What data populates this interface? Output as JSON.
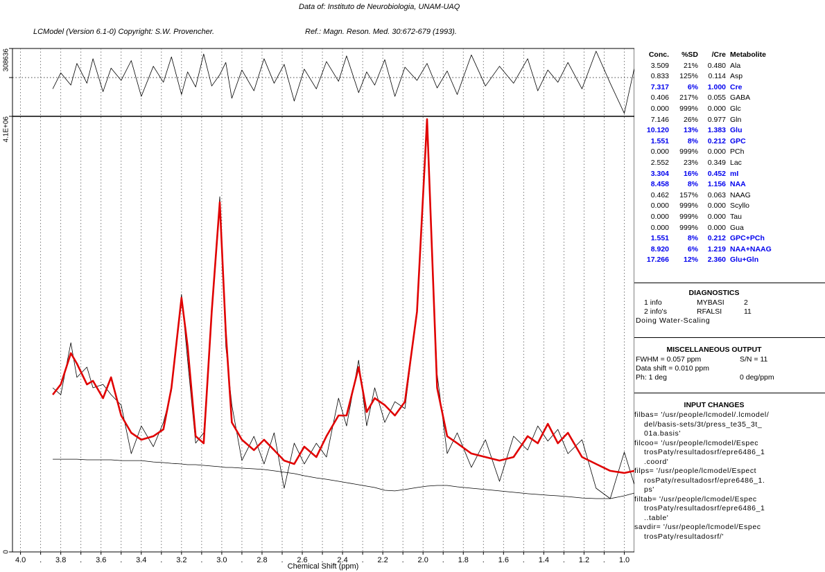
{
  "header": {
    "source": "Data of: Instituto de Neurobiologia, UNAM-UAQ",
    "program": "LCModel (Version 6.1-0) Copyright: S.W. Provencher.",
    "reference": "Ref.: Magn. Reson. Med. 30:672-679 (1993)."
  },
  "chart_data": {
    "type": "line",
    "x_label": "Chemical Shift (ppm)",
    "xlim": [
      4.04,
      0.95
    ],
    "xticks": [
      {
        "value": 4.0,
        "label": "4.0"
      },
      {
        "value": 3.9,
        "label": "."
      },
      {
        "value": 3.8,
        "label": "3.8"
      },
      {
        "value": 3.7,
        "label": "."
      },
      {
        "value": 3.6,
        "label": "3.6"
      },
      {
        "value": 3.5,
        "label": "."
      },
      {
        "value": 3.4,
        "label": "3.4"
      },
      {
        "value": 3.3,
        "label": "."
      },
      {
        "value": 3.2,
        "label": "3.2"
      },
      {
        "value": 3.1,
        "label": "."
      },
      {
        "value": 3.0,
        "label": "3.0"
      },
      {
        "value": 2.9,
        "label": "."
      },
      {
        "value": 2.8,
        "label": "2.8"
      },
      {
        "value": 2.7,
        "label": "."
      },
      {
        "value": 2.6,
        "label": "2.6"
      },
      {
        "value": 2.5,
        "label": "."
      },
      {
        "value": 2.4,
        "label": "2.4"
      },
      {
        "value": 2.3,
        "label": "."
      },
      {
        "value": 2.2,
        "label": "2.2"
      },
      {
        "value": 2.1,
        "label": "."
      },
      {
        "value": 2.0,
        "label": "2.0"
      },
      {
        "value": 1.9,
        "label": "."
      },
      {
        "value": 1.8,
        "label": "1.8"
      },
      {
        "value": 1.7,
        "label": "."
      },
      {
        "value": 1.6,
        "label": "1.6"
      },
      {
        "value": 1.5,
        "label": "."
      },
      {
        "value": 1.4,
        "label": "1.4"
      },
      {
        "value": 1.3,
        "label": "."
      },
      {
        "value": 1.2,
        "label": "1.2"
      },
      {
        "value": 1.1,
        "label": "."
      },
      {
        "value": 1.0,
        "label": "1.0"
      }
    ],
    "ylim": [
      0,
      4100000
    ],
    "yticks": [
      0,
      {
        "value": 4100000,
        "label": "4.1E+06"
      }
    ],
    "y2lim": [
      -411500,
      308636
    ],
    "y2ticks": [
      308636
    ],
    "grid": true,
    "x": [
      3.84,
      3.8,
      3.75,
      3.72,
      3.67,
      3.64,
      3.59,
      3.55,
      3.5,
      3.45,
      3.4,
      3.34,
      3.29,
      3.25,
      3.2,
      3.17,
      3.13,
      3.09,
      3.05,
      3.01,
      2.98,
      2.95,
      2.9,
      2.84,
      2.79,
      2.74,
      2.69,
      2.64,
      2.59,
      2.53,
      2.48,
      2.42,
      2.38,
      2.32,
      2.28,
      2.24,
      2.19,
      2.14,
      2.09,
      2.03,
      1.98,
      1.93,
      1.88,
      1.83,
      1.76,
      1.69,
      1.62,
      1.55,
      1.48,
      1.43,
      1.38,
      1.33,
      1.28,
      1.21,
      1.14,
      1.07,
      1.0,
      0.95
    ],
    "series": [
      {
        "color": "#000000",
        "line_width": 0.8,
        "values": [
          1545000,
          1479000,
          1969000,
          1643000,
          1740000,
          1545000,
          1577000,
          1480000,
          1382000,
          925000,
          1186000,
          991000,
          1219000,
          1512000,
          2425000,
          1806000,
          1024000,
          1121000,
          2229000,
          3344000,
          1936000,
          1382000,
          860000,
          1088000,
          828000,
          1121000,
          599000,
          1024000,
          828000,
          1023000,
          893000,
          1447000,
          1186000,
          1805000,
          1187000,
          1545000,
          1219000,
          1414000,
          1349000,
          2262000,
          3976000,
          1675000,
          926000,
          1121000,
          796000,
          1056000,
          664000,
          1089000,
          959000,
          1186000,
          1043000,
          1153000,
          925000,
          1056000,
          600000,
          502000,
          939000,
          633000
        ]
      },
      {
        "color": "#e00000",
        "line_width": 2.6,
        "values": [
          1480000,
          1577000,
          1871000,
          1773000,
          1577000,
          1610000,
          1447000,
          1643000,
          1284000,
          1121000,
          1056000,
          1089000,
          1154000,
          1545000,
          2392000,
          1936000,
          1089000,
          1023000,
          2262000,
          3292000,
          2066000,
          1219000,
          1056000,
          958000,
          1056000,
          958000,
          860000,
          828000,
          991000,
          893000,
          1089000,
          1284000,
          1284000,
          1740000,
          1317000,
          1447000,
          1382000,
          1284000,
          1414000,
          2262000,
          4074000,
          1545000,
          1089000,
          1023000,
          926000,
          893000,
          860000,
          893000,
          1089000,
          1023000,
          1206000,
          1023000,
          1121000,
          893000,
          828000,
          763000,
          743000,
          763000
        ]
      },
      {
        "color": "#000000",
        "line_width": 0.8,
        "values": [
          873000,
          873000,
          873000,
          873000,
          867000,
          867000,
          867000,
          867000,
          860000,
          860000,
          860000,
          847000,
          841000,
          834000,
          828000,
          821000,
          821000,
          815000,
          808000,
          802000,
          795000,
          795000,
          789000,
          782000,
          776000,
          763000,
          750000,
          737000,
          717000,
          697000,
          684000,
          665000,
          652000,
          632000,
          619000,
          606000,
          580000,
          574000,
          587000,
          606000,
          619000,
          626000,
          626000,
          613000,
          600000,
          587000,
          574000,
          561000,
          548000,
          541000,
          534000,
          528000,
          521000,
          508000,
          502000,
          502000,
          528000,
          554000
        ]
      },
      {
        "color": "#000000",
        "line_width": 0.8,
        "axis": "y2",
        "values": [
          -120000,
          50000,
          -80000,
          150000,
          -60000,
          200000,
          -150000,
          100000,
          -30000,
          180000,
          -200000,
          120000,
          -50000,
          220000,
          -180000,
          60000,
          -100000,
          250000,
          -90000,
          30000,
          160000,
          -220000,
          80000,
          -140000,
          200000,
          -60000,
          140000,
          -250000,
          90000,
          -120000,
          170000,
          -40000,
          230000,
          -160000,
          60000,
          -80000,
          190000,
          -200000,
          110000,
          -30000,
          150000,
          -110000,
          70000,
          -180000,
          240000,
          -90000,
          120000,
          -60000,
          200000,
          -140000,
          80000,
          -50000,
          160000,
          -120000,
          280000,
          -60000,
          -380000,
          100000
        ]
      }
    ]
  },
  "results": {
    "columns": [
      "Conc.",
      "%SD",
      "/Cre",
      "Metabolite"
    ],
    "highlight_color": "#0000ee",
    "rows": [
      {
        "cells": [
          "3.509",
          "21%",
          "0.480",
          "Ala"
        ],
        "highlight": false
      },
      {
        "cells": [
          "0.833",
          "125%",
          "0.114",
          "Asp"
        ],
        "highlight": false
      },
      {
        "cells": [
          "7.317",
          "6%",
          "1.000",
          "Cre"
        ],
        "highlight": true
      },
      {
        "cells": [
          "0.406",
          "217%",
          "0.055",
          "GABA"
        ],
        "highlight": false
      },
      {
        "cells": [
          "0.000",
          "999%",
          "0.000",
          "Glc"
        ],
        "highlight": false
      },
      {
        "cells": [
          "7.146",
          "26%",
          "0.977",
          "Gln"
        ],
        "highlight": false
      },
      {
        "cells": [
          "10.120",
          "13%",
          "1.383",
          "Glu"
        ],
        "highlight": true
      },
      {
        "cells": [
          "1.551",
          "8%",
          "0.212",
          "GPC"
        ],
        "highlight": true
      },
      {
        "cells": [
          "0.000",
          "999%",
          "0.000",
          "PCh"
        ],
        "highlight": false
      },
      {
        "cells": [
          "2.552",
          "23%",
          "0.349",
          "Lac"
        ],
        "highlight": false
      },
      {
        "cells": [
          "3.304",
          "16%",
          "0.452",
          "mI"
        ],
        "highlight": true
      },
      {
        "cells": [
          "8.458",
          "8%",
          "1.156",
          "NAA"
        ],
        "highlight": true
      },
      {
        "cells": [
          "0.462",
          "157%",
          "0.063",
          "NAAG"
        ],
        "highlight": false
      },
      {
        "cells": [
          "0.000",
          "999%",
          "0.000",
          "Scyllo"
        ],
        "highlight": false
      },
      {
        "cells": [
          "0.000",
          "999%",
          "0.000",
          "Tau"
        ],
        "highlight": false
      },
      {
        "cells": [
          "0.000",
          "999%",
          "0.000",
          "Gua"
        ],
        "highlight": false
      },
      {
        "cells": [
          "1.551",
          "8%",
          "0.212",
          "GPC+PCh"
        ],
        "highlight": true
      },
      {
        "cells": [
          "8.920",
          "6%",
          "1.219",
          "NAA+NAAG"
        ],
        "highlight": true
      },
      {
        "cells": [
          "17.266",
          "12%",
          "2.360",
          "Glu+Gln"
        ],
        "highlight": true
      }
    ]
  },
  "diagnostics": {
    "title": "DIAGNOSTICS",
    "rows": [
      [
        "1 info",
        "MYBASI",
        "2"
      ],
      [
        "2 info's",
        "RFALSI",
        "11"
      ]
    ],
    "note": "Doing Water-Scaling"
  },
  "misc": {
    "title": "MISCELLANEOUS OUTPUT",
    "rows": [
      [
        "FWHM = 0.057 ppm",
        "S/N = 11"
      ],
      [
        "Data shift = 0.010 ppm",
        ""
      ],
      [
        "Ph:  1 deg",
        "0 deg/ppm"
      ]
    ]
  },
  "input_changes": {
    "title": "INPUT CHANGES",
    "entries": [
      [
        "filbas= '/usr/people/lcmodel/.lcmodel/",
        "del/basis-sets/3t/press_te35_3t_",
        "01a.basis'"
      ],
      [
        "filcoo= '/usr/people/lcmodel/Espec",
        "trosPaty/resultadosrf/epre6486_1",
        ".coord'"
      ],
      [
        "filps= '/usr/people/lcmodel/Espect",
        "rosPaty/resultadosrf/epre6486_1.",
        "ps'"
      ],
      [
        "filtab= '/usr/people/lcmodel/Espec",
        "trosPaty/resultadosrf/epre6486_1",
        "..table'"
      ],
      [
        "savdir= '/usr/people/lcmodel/Espec",
        "trosPaty/resultadosrf/'"
      ]
    ]
  }
}
